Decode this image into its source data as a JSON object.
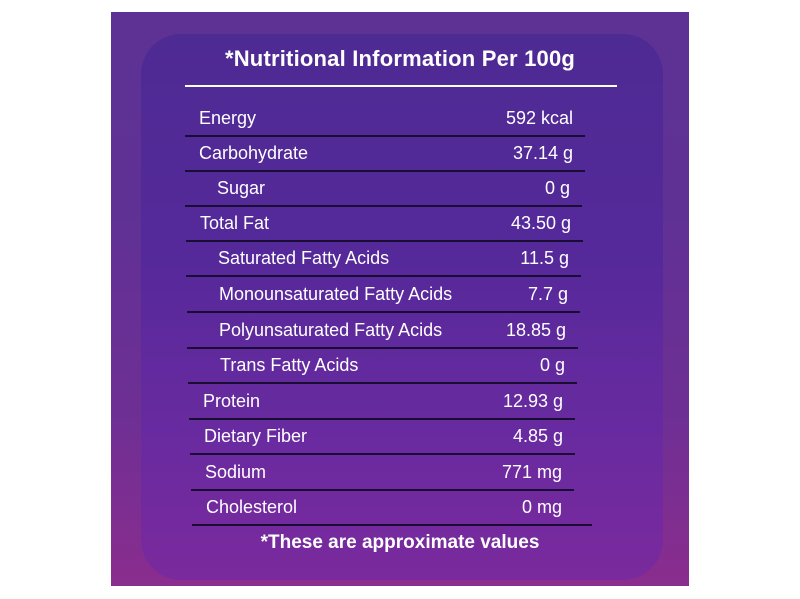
{
  "title": "*Nutritional Information Per 100g",
  "rows": [
    {
      "label": "Energy",
      "value": "592 kcal"
    },
    {
      "label": "Carbohydrate",
      "value": "37.14 g"
    },
    {
      "label": "Sugar",
      "value": "0 g"
    },
    {
      "label": "Total Fat",
      "value": "43.50 g"
    },
    {
      "label": "Saturated Fatty Acids",
      "value": "11.5 g"
    },
    {
      "label": "Monounsaturated Fatty Acids",
      "value": "7.7 g"
    },
    {
      "label": "Polyunsaturated Fatty Acids",
      "value": "18.85 g"
    },
    {
      "label": "Trans Fatty Acids",
      "value": "0 g"
    },
    {
      "label": "Protein",
      "value": "12.93 g"
    },
    {
      "label": "Dietary Fiber",
      "value": "4.85 g"
    },
    {
      "label": "Sodium",
      "value": "771 mg"
    },
    {
      "label": "Cholesterol",
      "value": "0 mg"
    }
  ],
  "footer": "*These are approximate values",
  "colors": {
    "panel_background": "#603195",
    "text": "#ffffff",
    "row_divider": "#1a0d33"
  }
}
